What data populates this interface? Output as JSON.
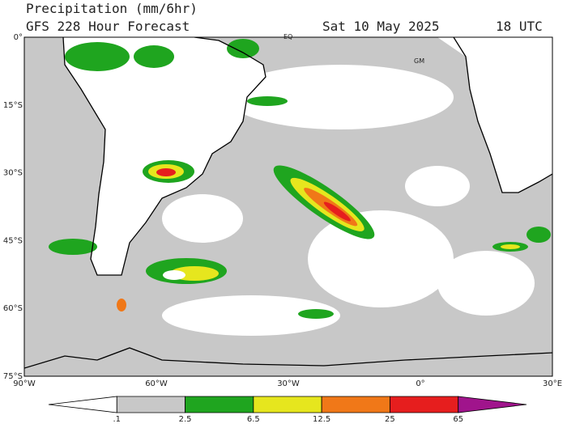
{
  "header": {
    "title": "Precipitation (mm/6hr)",
    "subtitle": "GFS 228 Hour Forecast",
    "date": "Sat 10 May 2025",
    "time": "18 UTC"
  },
  "map": {
    "lat_labels": [
      "0°",
      "15°S",
      "30°S",
      "45°S",
      "60°S",
      "75°S"
    ],
    "lon_labels": [
      "90°W",
      "60°W",
      "30°W",
      "0°",
      "30°E"
    ],
    "places": [
      "EQ",
      "GM"
    ]
  },
  "colorbar": {
    "labels": [
      ".1",
      "2.5",
      "6.5",
      "12.5",
      "25",
      "65"
    ],
    "colors": [
      "#ffffff",
      "#c8c8c8",
      "#1fa51f",
      "#e6e61e",
      "#f07818",
      "#e61e1e",
      "#a0148c"
    ]
  }
}
